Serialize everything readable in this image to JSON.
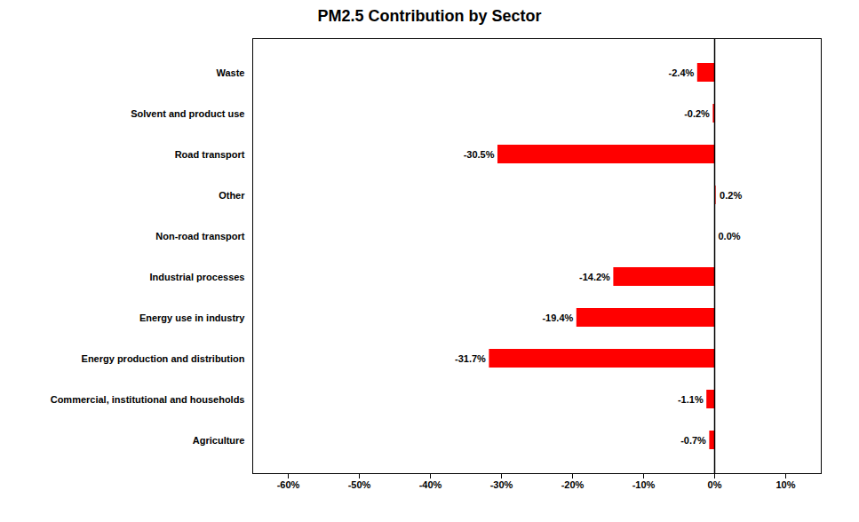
{
  "chart_data": {
    "type": "bar",
    "title": "PM2.5 Contribution by Sector",
    "orientation": "horizontal",
    "categories": [
      "Agriculture",
      "Commercial, institutional and households",
      "Energy production and distribution",
      "Energy use in industry",
      "Industrial processes",
      "Non-road transport",
      "Other",
      "Road transport",
      "Solvent and product use",
      "Waste"
    ],
    "values": [
      -0.7,
      -1.1,
      -31.7,
      -19.4,
      -14.2,
      0.0,
      0.2,
      -30.5,
      -0.2,
      -2.4
    ],
    "value_labels": [
      "-0.7%",
      "-1.1%",
      "-31.7%",
      "-19.4%",
      "-14.2%",
      "0.0%",
      "0.2%",
      "-30.5%",
      "-0.2%",
      "-2.4%"
    ],
    "data_labels": true,
    "color": "#ff0000",
    "xlim": [
      -65,
      15
    ],
    "xticks": [
      {
        "value": -60,
        "label": "-60%"
      },
      {
        "value": -50,
        "label": "-50%"
      },
      {
        "value": -40,
        "label": "-40%"
      },
      {
        "value": -30,
        "label": "-30%"
      },
      {
        "value": -20,
        "label": "-20%"
      },
      {
        "value": -10,
        "label": "-10%"
      },
      {
        "value": 0,
        "label": "0%"
      },
      {
        "value": 10,
        "label": "10%"
      }
    ],
    "grid": false
  }
}
